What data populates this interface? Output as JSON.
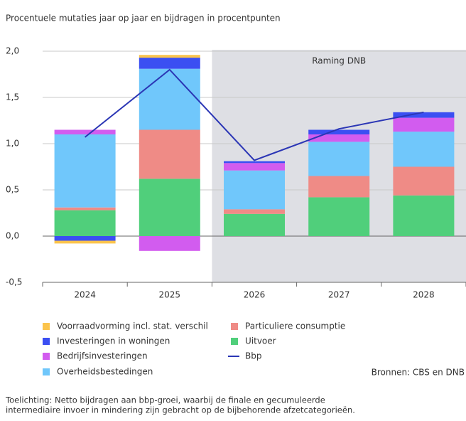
{
  "chart_data": {
    "type": "stacked_bar_line",
    "title": "Procentuele mutaties jaar op jaar en bijdragen in procentpunten",
    "annotation": "Raming DNB",
    "source": "Bronnen: CBS en DNB",
    "note": [
      "Toelichting: Netto bijdragen aan bbp-groei, waarbij de finale en gecumuleerde",
      "intermediaire invoer in mindering zijn gebracht op de bijbehorende afzetcategorieën."
    ],
    "categories": [
      "2024",
      "2025",
      "2026",
      "2027",
      "2028"
    ],
    "ylim": [
      -0.5,
      2.0
    ],
    "yticks": [
      {
        "value": -0.5,
        "label": "-0,5"
      },
      {
        "value": 0,
        "label": "0,0"
      },
      {
        "value": 0.5,
        "label": "0,5"
      },
      {
        "value": 1.0,
        "label": "1,0"
      },
      {
        "value": 1.5,
        "label": "1,5"
      },
      {
        "value": 2.0,
        "label": "2,0"
      }
    ],
    "series": [
      {
        "name": "Voorraadvorming incl. stat. verschil",
        "color": "#fbc44c",
        "values": [
          -0.03,
          0.03,
          0,
          0,
          0
        ]
      },
      {
        "name": "Investeringen in woningen",
        "color": "#3b4ff2",
        "values": [
          -0.05,
          0.12,
          0.02,
          0.05,
          0.06
        ]
      },
      {
        "name": "Bedrijfsinvesteringen",
        "color": "#d25cef",
        "values": [
          0.05,
          -0.16,
          0.08,
          0.08,
          0.15
        ]
      },
      {
        "name": "Overheidsbestedingen",
        "color": "#70c7fb",
        "values": [
          0.79,
          0.66,
          0.42,
          0.37,
          0.38
        ]
      },
      {
        "name": "Particuliere consumptie",
        "color": "#ef8b86",
        "values": [
          0.03,
          0.53,
          0.05,
          0.23,
          0.31
        ]
      },
      {
        "name": "Uitvoer",
        "color": "#50cf7b",
        "values": [
          0.28,
          0.62,
          0.24,
          0.42,
          0.44
        ]
      },
      {
        "name": "Bbp",
        "type": "line",
        "color": "#2b36b5",
        "values": [
          1.07,
          1.8,
          0.82,
          1.16,
          1.34
        ]
      }
    ]
  }
}
